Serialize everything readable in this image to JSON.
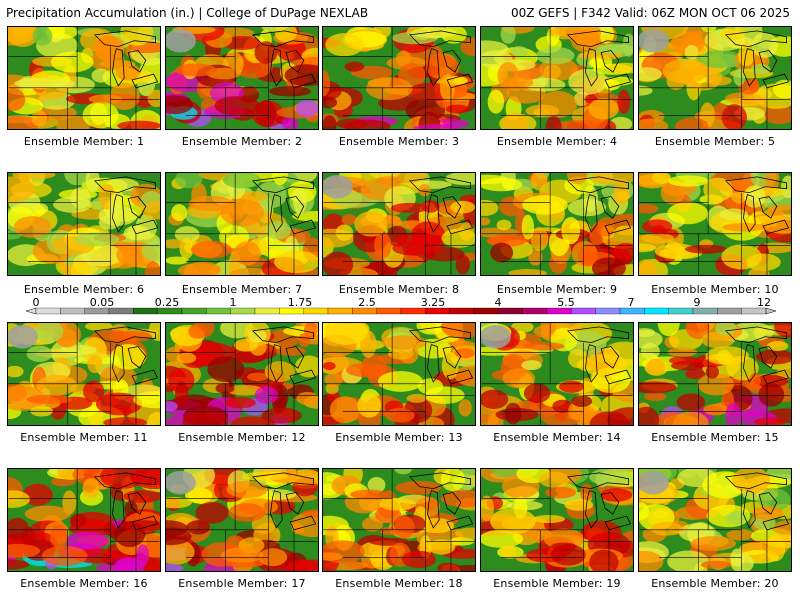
{
  "header": {
    "left_title": "Precipitation Accumulation (in.) | College of DuPage NEXLAB",
    "right_title": "00Z GEFS | F342 Valid: 06Z MON OCT 06 2025"
  },
  "colorbar": {
    "labels": [
      "0",
      "0.05",
      "0.25",
      "1",
      "1.75",
      "2.5",
      "3.25",
      "4",
      "5.5",
      "7",
      "9",
      "12"
    ],
    "colors": [
      "#dcdcdc",
      "#bebebe",
      "#9b9b9b",
      "#7d7d7d",
      "#1e6e14",
      "#2e8b1e",
      "#43a52b",
      "#6fc23a",
      "#a6d84a",
      "#e8f03c",
      "#ffff00",
      "#ffd700",
      "#ffb000",
      "#ff8c00",
      "#ff5a00",
      "#ff2a00",
      "#e60000",
      "#c00000",
      "#9b0000",
      "#8b0030",
      "#b0006e",
      "#e000c8",
      "#b44cff",
      "#8c8cff",
      "#3cb4ff",
      "#00e6ff",
      "#40d0d0",
      "#7fb0b0",
      "#a0a0a0",
      "#c4c4c4"
    ]
  },
  "members": [
    {
      "label": "Ensemble Member: 1",
      "intensity": 0.45
    },
    {
      "label": "Ensemble Member: 2",
      "intensity": 0.85
    },
    {
      "label": "Ensemble Member: 3",
      "intensity": 0.7
    },
    {
      "label": "Ensemble Member: 4",
      "intensity": 0.45
    },
    {
      "label": "Ensemble Member: 5",
      "intensity": 0.4
    },
    {
      "label": "Ensemble Member: 6",
      "intensity": 0.3
    },
    {
      "label": "Ensemble Member: 7",
      "intensity": 0.35
    },
    {
      "label": "Ensemble Member: 8",
      "intensity": 0.6
    },
    {
      "label": "Ensemble Member: 9",
      "intensity": 0.6
    },
    {
      "label": "Ensemble Member: 10",
      "intensity": 0.55
    },
    {
      "label": "Ensemble Member: 11",
      "intensity": 0.5
    },
    {
      "label": "Ensemble Member: 12",
      "intensity": 0.8
    },
    {
      "label": "Ensemble Member: 13",
      "intensity": 0.55
    },
    {
      "label": "Ensemble Member: 14",
      "intensity": 0.6
    },
    {
      "label": "Ensemble Member: 15",
      "intensity": 0.75
    },
    {
      "label": "Ensemble Member: 16",
      "intensity": 0.9
    },
    {
      "label": "Ensemble Member: 17",
      "intensity": 0.75
    },
    {
      "label": "Ensemble Member: 18",
      "intensity": 0.6
    },
    {
      "label": "Ensemble Member: 19",
      "intensity": 0.55
    },
    {
      "label": "Ensemble Member: 20",
      "intensity": 0.4
    }
  ]
}
